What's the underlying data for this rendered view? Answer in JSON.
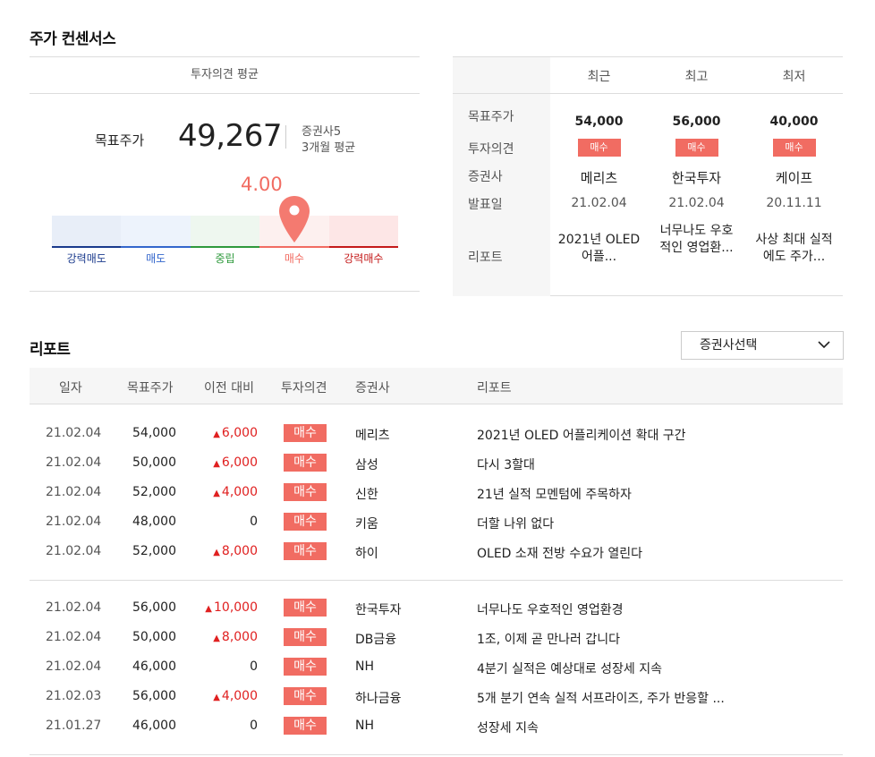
{
  "consensus": {
    "title": "주가 컨센서스",
    "left": {
      "header": "투자의견 평균",
      "target_label": "목표주가",
      "target_value": "49,267",
      "meta_firms": "증권사5",
      "meta_period": "3개월 평균",
      "score": "4.00",
      "score_value": 4.0,
      "gauge_labels": [
        "강력매도",
        "매도",
        "중립",
        "매수",
        "강력매수"
      ],
      "gauge_colors": [
        "#1a3a8c",
        "#3366cc",
        "#2e9a3c",
        "#f16c62",
        "#c41a1a"
      ]
    },
    "right": {
      "columns": [
        "최근",
        "최고",
        "최저"
      ],
      "row_labels": [
        "목표주가",
        "투자의견",
        "증권사",
        "발표일",
        "리포트"
      ],
      "cells": [
        {
          "price": "54,000",
          "opinion": "매수",
          "firm": "메리츠",
          "date": "21.02.04",
          "report": "2021년 OLED 어플..."
        },
        {
          "price": "56,000",
          "opinion": "매수",
          "firm": "한국투자",
          "date": "21.02.04",
          "report": "너무나도 우호적인 영업환..."
        },
        {
          "price": "40,000",
          "opinion": "매수",
          "firm": "케이프",
          "date": "20.11.11",
          "report": "사상 최대 실적에도 주가..."
        }
      ]
    }
  },
  "reports": {
    "title": "리포트",
    "select_label": "증권사선택",
    "headers": [
      "일자",
      "목표주가",
      "이전 대비",
      "투자의견",
      "증권사",
      "리포트"
    ],
    "rows": [
      {
        "date": "21.02.04",
        "price": "54,000",
        "change": "6,000",
        "up": true,
        "opinion": "매수",
        "firm": "메리츠",
        "report": "2021년 OLED 어플리케이션 확대 구간"
      },
      {
        "date": "21.02.04",
        "price": "50,000",
        "change": "6,000",
        "up": true,
        "opinion": "매수",
        "firm": "삼성",
        "report": "다시 3할대"
      },
      {
        "date": "21.02.04",
        "price": "52,000",
        "change": "4,000",
        "up": true,
        "opinion": "매수",
        "firm": "신한",
        "report": "21년 실적 모멘텀에 주목하자"
      },
      {
        "date": "21.02.04",
        "price": "48,000",
        "change": "0",
        "up": false,
        "opinion": "매수",
        "firm": "키움",
        "report": "더할 나위 없다"
      },
      {
        "date": "21.02.04",
        "price": "52,000",
        "change": "8,000",
        "up": true,
        "opinion": "매수",
        "firm": "하이",
        "report": "OLED 소재 전방 수요가 열린다"
      },
      {
        "date": "21.02.04",
        "price": "56,000",
        "change": "10,000",
        "up": true,
        "opinion": "매수",
        "firm": "한국투자",
        "report": "너무나도 우호적인 영업환경"
      },
      {
        "date": "21.02.04",
        "price": "50,000",
        "change": "8,000",
        "up": true,
        "opinion": "매수",
        "firm": "DB금융",
        "report": "1조, 이제 곧 만나러 갑니다"
      },
      {
        "date": "21.02.04",
        "price": "46,000",
        "change": "0",
        "up": false,
        "opinion": "매수",
        "firm": "NH",
        "report": "4분기 실적은 예상대로 성장세 지속"
      },
      {
        "date": "21.02.03",
        "price": "56,000",
        "change": "4,000",
        "up": true,
        "opinion": "매수",
        "firm": "하나금융",
        "report": "5개 분기 연속 실적 서프라이즈, 주가 반응할 ..."
      },
      {
        "date": "21.01.27",
        "price": "46,000",
        "change": "0",
        "up": false,
        "opinion": "매수",
        "firm": "NH",
        "report": "성장세 지속"
      }
    ]
  }
}
